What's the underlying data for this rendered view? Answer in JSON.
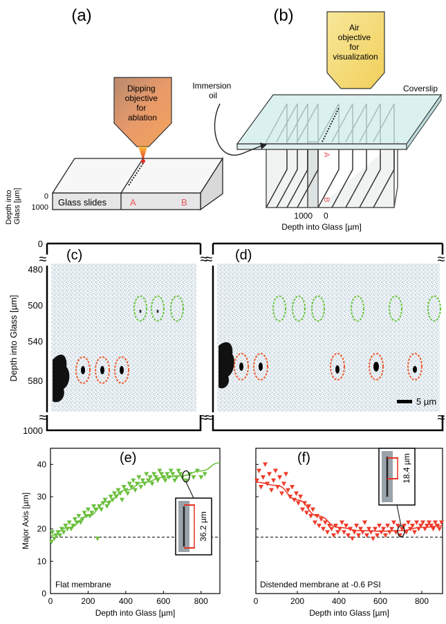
{
  "panel_a": {
    "letter": "(a)",
    "objective_text": [
      "Dipping",
      "objective",
      "for",
      "ablation"
    ],
    "slides_label": "Glass slides",
    "mark_a": "A",
    "mark_b": "B",
    "axis_label": [
      "Depth into",
      "Glass [µm]"
    ],
    "tick_0": "0",
    "tick_1000": "1000"
  },
  "panel_b": {
    "letter": "(b)",
    "objective_text": [
      "Air",
      "objective",
      "for",
      "visualization"
    ],
    "immersion_label": [
      "Immersion",
      "oil"
    ],
    "coverslip_label": "Coverslip",
    "mark_a": "A",
    "mark_b": "B",
    "tick_1000": "1000",
    "tick_0": "0",
    "axis_label": "Depth into Glass [µm]"
  },
  "panel_cd": {
    "letter_c": "(c)",
    "letter_d": "(d)",
    "y_axis_label": "Depth into Glass [µm]",
    "y_ticks": [
      "0",
      "480",
      "500",
      "540",
      "580",
      "1000"
    ],
    "scale_bar": "5 µm",
    "break_symbol": "≈"
  },
  "chart_data": [
    {
      "type": "scatter",
      "panel": "(e)",
      "annotation": "Flat membrane",
      "inset_label": "36.2 µm",
      "ylabel": "Major Axis [µm]",
      "xlabel": "Depth into Glass [µm]",
      "xlim": [
        0,
        900
      ],
      "ylim": [
        0,
        45
      ],
      "x_ticks": [
        "0",
        "200",
        "400",
        "600",
        "800"
      ],
      "y_ticks": [
        "0",
        "10",
        "20",
        "30",
        "40"
      ],
      "reference_line_y": 17.5,
      "marker_color": "#6abf3c",
      "points": [
        [
          5,
          16
        ],
        [
          10,
          19
        ],
        [
          20,
          17
        ],
        [
          30,
          18
        ],
        [
          40,
          19
        ],
        [
          50,
          18
        ],
        [
          60,
          20
        ],
        [
          70,
          19
        ],
        [
          80,
          21
        ],
        [
          90,
          20
        ],
        [
          100,
          22
        ],
        [
          110,
          20
        ],
        [
          120,
          21
        ],
        [
          130,
          23
        ],
        [
          140,
          22
        ],
        [
          150,
          24
        ],
        [
          160,
          22
        ],
        [
          170,
          23
        ],
        [
          180,
          25
        ],
        [
          190,
          24
        ],
        [
          200,
          26
        ],
        [
          210,
          24
        ],
        [
          220,
          25
        ],
        [
          230,
          27
        ],
        [
          240,
          26
        ],
        [
          250,
          17
        ],
        [
          260,
          27
        ],
        [
          270,
          26
        ],
        [
          280,
          28
        ],
        [
          290,
          29
        ],
        [
          300,
          27
        ],
        [
          310,
          28
        ],
        [
          320,
          30
        ],
        [
          330,
          29
        ],
        [
          340,
          31
        ],
        [
          350,
          30
        ],
        [
          360,
          32
        ],
        [
          370,
          31
        ],
        [
          380,
          29
        ],
        [
          390,
          33
        ],
        [
          400,
          32
        ],
        [
          410,
          31
        ],
        [
          420,
          34
        ],
        [
          430,
          33
        ],
        [
          440,
          35
        ],
        [
          450,
          32
        ],
        [
          460,
          34
        ],
        [
          470,
          36
        ],
        [
          480,
          33
        ],
        [
          490,
          35
        ],
        [
          500,
          34
        ],
        [
          510,
          37
        ],
        [
          520,
          35
        ],
        [
          530,
          36
        ],
        [
          540,
          34
        ],
        [
          550,
          37
        ],
        [
          560,
          36
        ],
        [
          570,
          35
        ],
        [
          580,
          38
        ],
        [
          590,
          37
        ],
        [
          600,
          36
        ],
        [
          610,
          35
        ],
        [
          620,
          37
        ],
        [
          630,
          36
        ],
        [
          640,
          38
        ],
        [
          650,
          37
        ],
        [
          660,
          35
        ],
        [
          670,
          36
        ],
        [
          680,
          38
        ],
        [
          690,
          37
        ],
        [
          700,
          36
        ],
        [
          720,
          35
        ],
        [
          740,
          37
        ],
        [
          760,
          36
        ],
        [
          780,
          38
        ],
        [
          800,
          36
        ],
        [
          820,
          37
        ]
      ],
      "fit": [
        [
          0,
          18
        ],
        [
          100,
          20.5
        ],
        [
          200,
          24
        ],
        [
          300,
          28.5
        ],
        [
          400,
          32
        ],
        [
          500,
          34.5
        ],
        [
          600,
          36
        ],
        [
          700,
          36.5
        ],
        [
          800,
          38
        ],
        [
          900,
          40.5
        ]
      ]
    },
    {
      "type": "scatter",
      "panel": "(f)",
      "annotation": "Distended membrane at -0.6 PSI",
      "inset_label": "18.4 µm",
      "xlabel": "Depth into Glass [µm]",
      "xlim": [
        0,
        900
      ],
      "ylim": [
        0,
        45
      ],
      "x_ticks": [
        "0",
        "200",
        "400",
        "600",
        "800"
      ],
      "reference_line_y": 17.5,
      "marker_color": "#ee3b2b",
      "points": [
        [
          5,
          35
        ],
        [
          15,
          38
        ],
        [
          25,
          33
        ],
        [
          35,
          36
        ],
        [
          45,
          40
        ],
        [
          55,
          34
        ],
        [
          65,
          37
        ],
        [
          75,
          32
        ],
        [
          85,
          35
        ],
        [
          95,
          38
        ],
        [
          105,
          33
        ],
        [
          115,
          36
        ],
        [
          125,
          31
        ],
        [
          135,
          34
        ],
        [
          145,
          37
        ],
        [
          155,
          32
        ],
        [
          165,
          30
        ],
        [
          175,
          33
        ],
        [
          185,
          29
        ],
        [
          195,
          31
        ],
        [
          205,
          28
        ],
        [
          215,
          30
        ],
        [
          225,
          26
        ],
        [
          235,
          28
        ],
        [
          245,
          25
        ],
        [
          255,
          27
        ],
        [
          265,
          24
        ],
        [
          275,
          26
        ],
        [
          285,
          22
        ],
        [
          295,
          24
        ],
        [
          305,
          21
        ],
        [
          315,
          23
        ],
        [
          325,
          20
        ],
        [
          335,
          22
        ],
        [
          345,
          19
        ],
        [
          355,
          21
        ],
        [
          365,
          20
        ],
        [
          375,
          18
        ],
        [
          385,
          21
        ],
        [
          395,
          19
        ],
        [
          405,
          20
        ],
        [
          415,
          22
        ],
        [
          425,
          19
        ],
        [
          435,
          21
        ],
        [
          445,
          18
        ],
        [
          455,
          20
        ],
        [
          465,
          17
        ],
        [
          475,
          19
        ],
        [
          485,
          21
        ],
        [
          495,
          18
        ],
        [
          505,
          20
        ],
        [
          515,
          19
        ],
        [
          525,
          22
        ],
        [
          535,
          18
        ],
        [
          545,
          20
        ],
        [
          555,
          19
        ],
        [
          565,
          17
        ],
        [
          575,
          20
        ],
        [
          585,
          18
        ],
        [
          595,
          21
        ],
        [
          605,
          19
        ],
        [
          615,
          20
        ],
        [
          625,
          18
        ],
        [
          635,
          21
        ],
        [
          645,
          19
        ],
        [
          655,
          20
        ],
        [
          665,
          22
        ],
        [
          675,
          19
        ],
        [
          685,
          21
        ],
        [
          695,
          18
        ],
        [
          705,
          20
        ],
        [
          715,
          21
        ],
        [
          725,
          19
        ],
        [
          735,
          22
        ],
        [
          745,
          20
        ],
        [
          755,
          21
        ],
        [
          765,
          19
        ],
        [
          775,
          22
        ],
        [
          785,
          20
        ],
        [
          795,
          21
        ],
        [
          805,
          22
        ],
        [
          815,
          20
        ],
        [
          825,
          21
        ],
        [
          835,
          22
        ],
        [
          845,
          21
        ],
        [
          855,
          20
        ],
        [
          865,
          22
        ],
        [
          875,
          21
        ],
        [
          885,
          20
        ],
        [
          895,
          22
        ]
      ],
      "fit": [
        [
          0,
          34.5
        ],
        [
          100,
          33.5
        ],
        [
          200,
          29
        ],
        [
          300,
          24
        ],
        [
          400,
          20.5
        ],
        [
          500,
          19.5
        ],
        [
          600,
          19.3
        ],
        [
          700,
          19.5
        ],
        [
          800,
          20.5
        ],
        [
          900,
          21
        ]
      ]
    }
  ]
}
